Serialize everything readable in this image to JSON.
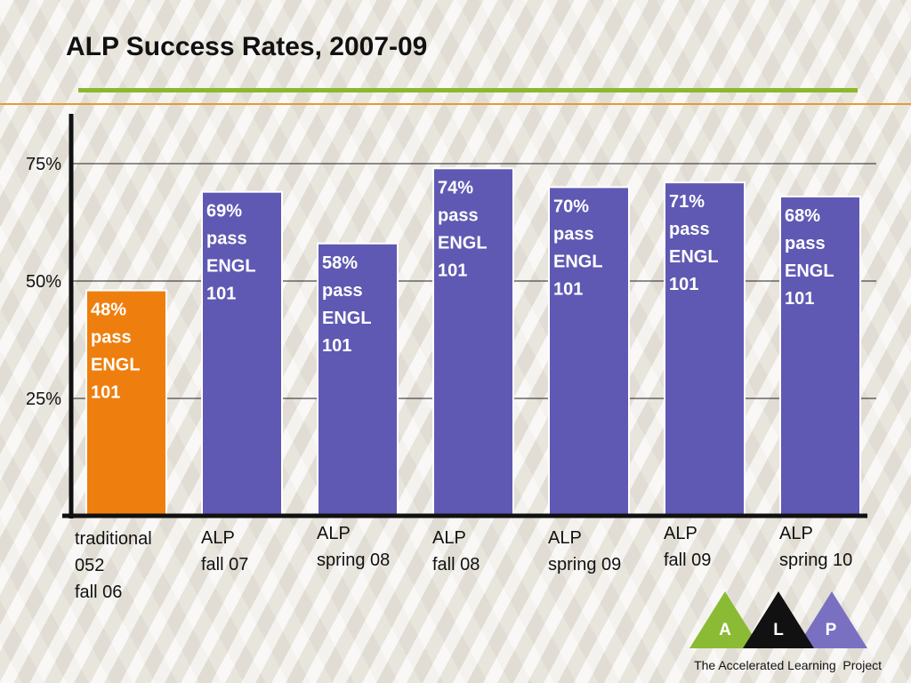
{
  "slide": {
    "title": "ALP Success Rates, 2007-09",
    "footer": "The Accelerated Learning  Project",
    "logo": {
      "letters": [
        "A",
        "L",
        "P"
      ],
      "colors": [
        "#8bbb34",
        "#111111",
        "#7a70c2"
      ]
    }
  },
  "chart_data": {
    "type": "bar",
    "title": "ALP Success Rates, 2007-09",
    "categories": [
      [
        "traditional",
        "052",
        "fall 06"
      ],
      [
        "ALP",
        "fall 07"
      ],
      [
        "ALP",
        "spring 08"
      ],
      [
        "ALP",
        "fall 08"
      ],
      [
        "ALP",
        "spring 09"
      ],
      [
        "ALP",
        "fall 09"
      ],
      [
        "ALP",
        "spring 10"
      ]
    ],
    "values": [
      48,
      69,
      58,
      74,
      70,
      71,
      68
    ],
    "bar_labels": [
      [
        "48%",
        "pass",
        "ENGL",
        "101"
      ],
      [
        "69%",
        "pass",
        "ENGL",
        "101"
      ],
      [
        "58%",
        "pass",
        "ENGL",
        "101"
      ],
      [
        "74%",
        "pass",
        "ENGL",
        "101"
      ],
      [
        "70%",
        "pass",
        "ENGL",
        "101"
      ],
      [
        "71%",
        "pass",
        "ENGL",
        "101"
      ],
      [
        "68%",
        "pass",
        "ENGL",
        "101"
      ]
    ],
    "bar_colors": [
      "#ee7f0f",
      "#5f59b3",
      "#5f59b3",
      "#5f59b3",
      "#5f59b3",
      "#5f59b3",
      "#5f59b3"
    ],
    "yticks": [
      25,
      50,
      75
    ],
    "ytick_labels": [
      "25%",
      "50%",
      "75%"
    ],
    "ylim": [
      0,
      85
    ],
    "xlabel": "",
    "ylabel": "",
    "grid": true
  }
}
